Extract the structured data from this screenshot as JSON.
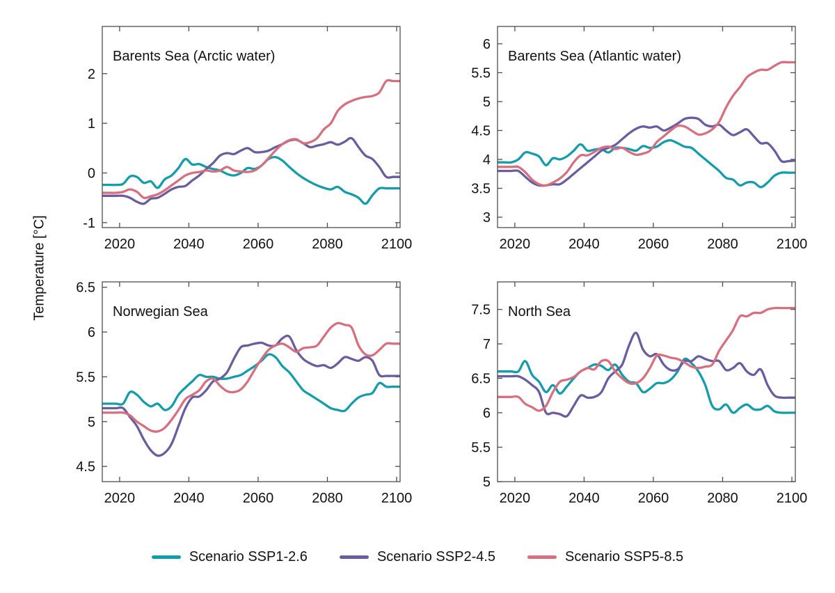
{
  "colors": {
    "ssp126": "#149CAB",
    "ssp245": "#6A5D9E",
    "ssp585": "#D6707F"
  },
  "legend": {
    "items": [
      {
        "label": "Scenario SSP1-2.6",
        "color": "ssp126"
      },
      {
        "label": "Scenario SSP2-4.5",
        "color": "ssp245"
      },
      {
        "label": "Scenario SSP5-8.5",
        "color": "ssp585"
      }
    ]
  },
  "chart_data": {
    "type": "line",
    "y_label": "Temperature [°C]",
    "x_label": "",
    "grid": false,
    "legend_position": "bottom",
    "x_range": [
      2015,
      2101
    ],
    "x_ticks": [
      2020,
      2040,
      2060,
      2080,
      2100
    ],
    "x": [
      2015,
      2017,
      2019,
      2021,
      2023,
      2025,
      2027,
      2029,
      2031,
      2033,
      2035,
      2037,
      2039,
      2041,
      2043,
      2045,
      2047,
      2049,
      2051,
      2053,
      2055,
      2057,
      2059,
      2061,
      2063,
      2065,
      2067,
      2069,
      2071,
      2073,
      2075,
      2077,
      2079,
      2081,
      2083,
      2085,
      2087,
      2089,
      2091,
      2093,
      2095,
      2097,
      2099,
      2101
    ],
    "panels": [
      {
        "title": "Barents Sea (Arctic water)",
        "y_range": [
          -1.1,
          2.95
        ],
        "y_ticks": [
          -1,
          0,
          1,
          2
        ],
        "series": [
          {
            "name": "Scenario SSP1-2.6",
            "scenario": "ssp126",
            "values": [
              -0.24,
              -0.24,
              -0.24,
              -0.22,
              -0.07,
              -0.08,
              -0.2,
              -0.17,
              -0.3,
              -0.13,
              -0.05,
              0.1,
              0.28,
              0.17,
              0.18,
              0.12,
              0.08,
              0.05,
              -0.02,
              -0.05,
              0.0,
              0.1,
              0.08,
              0.15,
              0.28,
              0.32,
              0.25,
              0.12,
              0.0,
              -0.1,
              -0.18,
              -0.25,
              -0.3,
              -0.33,
              -0.28,
              -0.38,
              -0.43,
              -0.5,
              -0.62,
              -0.45,
              -0.31,
              -0.31,
              -0.31,
              -0.31
            ]
          },
          {
            "name": "Scenario SSP2-4.5",
            "scenario": "ssp245",
            "values": [
              -0.46,
              -0.46,
              -0.46,
              -0.46,
              -0.5,
              -0.58,
              -0.62,
              -0.52,
              -0.5,
              -0.42,
              -0.33,
              -0.28,
              -0.26,
              -0.15,
              -0.05,
              0.08,
              0.2,
              0.35,
              0.4,
              0.38,
              0.45,
              0.5,
              0.42,
              0.42,
              0.45,
              0.52,
              0.58,
              0.65,
              0.67,
              0.6,
              0.52,
              0.55,
              0.58,
              0.62,
              0.57,
              0.63,
              0.7,
              0.52,
              0.35,
              0.28,
              0.12,
              -0.08,
              -0.08,
              -0.08
            ]
          },
          {
            "name": "Scenario SSP5-8.5",
            "scenario": "ssp585",
            "values": [
              -0.4,
              -0.4,
              -0.4,
              -0.38,
              -0.33,
              -0.38,
              -0.5,
              -0.47,
              -0.43,
              -0.35,
              -0.25,
              -0.15,
              -0.05,
              0.0,
              0.02,
              0.05,
              0.03,
              0.05,
              0.12,
              0.05,
              0.03,
              0.02,
              0.05,
              0.15,
              0.3,
              0.45,
              0.58,
              0.66,
              0.68,
              0.6,
              0.62,
              0.7,
              0.88,
              1.0,
              1.25,
              1.38,
              1.45,
              1.5,
              1.53,
              1.55,
              1.62,
              1.85,
              1.85,
              1.85
            ]
          }
        ]
      },
      {
        "title": "Barents Sea (Atlantic water)",
        "y_range": [
          2.82,
          6.3
        ],
        "y_ticks": [
          3,
          3.5,
          4,
          4.5,
          5,
          5.5,
          6
        ],
        "series": [
          {
            "name": "Scenario SSP1-2.6",
            "scenario": "ssp126",
            "values": [
              3.95,
              3.95,
              3.95,
              4.0,
              4.12,
              4.1,
              4.05,
              3.9,
              4.02,
              4.0,
              4.05,
              4.15,
              4.26,
              4.15,
              4.17,
              4.18,
              4.12,
              4.2,
              4.2,
              4.18,
              4.15,
              4.23,
              4.2,
              4.22,
              4.3,
              4.33,
              4.28,
              4.22,
              4.2,
              4.1,
              4.0,
              3.9,
              3.8,
              3.68,
              3.65,
              3.55,
              3.6,
              3.6,
              3.52,
              3.6,
              3.72,
              3.77,
              3.77,
              3.77
            ]
          },
          {
            "name": "Scenario SSP2-4.5",
            "scenario": "ssp245",
            "values": [
              3.8,
              3.8,
              3.8,
              3.8,
              3.7,
              3.6,
              3.55,
              3.55,
              3.57,
              3.57,
              3.65,
              3.75,
              3.85,
              3.95,
              4.05,
              4.15,
              4.2,
              4.25,
              4.35,
              4.45,
              4.53,
              4.57,
              4.55,
              4.57,
              4.5,
              4.55,
              4.62,
              4.7,
              4.72,
              4.7,
              4.6,
              4.57,
              4.6,
              4.5,
              4.42,
              4.47,
              4.52,
              4.4,
              4.28,
              4.28,
              4.15,
              3.97,
              3.97,
              3.98
            ]
          },
          {
            "name": "Scenario SSP5-8.5",
            "scenario": "ssp585",
            "values": [
              3.87,
              3.87,
              3.87,
              3.87,
              3.78,
              3.65,
              3.57,
              3.55,
              3.6,
              3.67,
              3.78,
              3.95,
              4.07,
              4.07,
              4.13,
              4.2,
              4.22,
              4.18,
              4.2,
              4.13,
              4.08,
              4.1,
              4.15,
              4.3,
              4.4,
              4.5,
              4.58,
              4.57,
              4.5,
              4.43,
              4.45,
              4.52,
              4.65,
              4.9,
              5.1,
              5.25,
              5.42,
              5.5,
              5.55,
              5.55,
              5.62,
              5.68,
              5.68,
              5.68
            ]
          }
        ]
      },
      {
        "title": "Norwegian Sea",
        "y_range": [
          4.33,
          6.56
        ],
        "y_ticks": [
          4.5,
          5,
          5.5,
          6,
          6.5
        ],
        "series": [
          {
            "name": "Scenario SSP1-2.6",
            "scenario": "ssp126",
            "values": [
              5.2,
              5.2,
              5.2,
              5.2,
              5.33,
              5.3,
              5.22,
              5.17,
              5.2,
              5.13,
              5.17,
              5.3,
              5.38,
              5.45,
              5.52,
              5.5,
              5.5,
              5.48,
              5.48,
              5.5,
              5.52,
              5.57,
              5.62,
              5.68,
              5.75,
              5.72,
              5.62,
              5.55,
              5.45,
              5.35,
              5.3,
              5.25,
              5.2,
              5.15,
              5.13,
              5.12,
              5.2,
              5.27,
              5.3,
              5.32,
              5.43,
              5.39,
              5.39,
              5.39
            ]
          },
          {
            "name": "Scenario SSP2-4.5",
            "scenario": "ssp245",
            "values": [
              5.15,
              5.15,
              5.15,
              5.15,
              5.05,
              4.95,
              4.8,
              4.68,
              4.62,
              4.65,
              4.75,
              4.95,
              5.15,
              5.27,
              5.28,
              5.35,
              5.45,
              5.48,
              5.55,
              5.7,
              5.83,
              5.85,
              5.87,
              5.88,
              5.85,
              5.85,
              5.93,
              5.95,
              5.8,
              5.7,
              5.65,
              5.62,
              5.63,
              5.6,
              5.65,
              5.72,
              5.7,
              5.68,
              5.72,
              5.68,
              5.52,
              5.51,
              5.51,
              5.51
            ]
          },
          {
            "name": "Scenario SSP5-8.5",
            "scenario": "ssp585",
            "values": [
              5.1,
              5.1,
              5.1,
              5.1,
              5.07,
              5.0,
              4.95,
              4.9,
              4.89,
              4.93,
              5.02,
              5.13,
              5.25,
              5.3,
              5.35,
              5.45,
              5.48,
              5.4,
              5.34,
              5.33,
              5.36,
              5.45,
              5.58,
              5.7,
              5.8,
              5.85,
              5.87,
              5.83,
              5.78,
              5.82,
              5.83,
              5.85,
              5.95,
              6.05,
              6.1,
              6.08,
              6.05,
              5.85,
              5.75,
              5.74,
              5.8,
              5.87,
              5.87,
              5.87
            ]
          }
        ]
      },
      {
        "title": "North Sea",
        "y_range": [
          5.0,
          7.9
        ],
        "y_ticks": [
          5,
          5.5,
          6,
          6.5,
          7,
          7.5
        ],
        "series": [
          {
            "name": "Scenario SSP1-2.6",
            "scenario": "ssp126",
            "values": [
              6.6,
              6.6,
              6.6,
              6.6,
              6.75,
              6.55,
              6.45,
              6.3,
              6.4,
              6.28,
              6.38,
              6.5,
              6.6,
              6.65,
              6.7,
              6.68,
              6.62,
              6.7,
              6.55,
              6.45,
              6.43,
              6.3,
              6.35,
              6.43,
              6.43,
              6.48,
              6.6,
              6.78,
              6.72,
              6.6,
              6.4,
              6.1,
              6.05,
              6.12,
              6.0,
              6.07,
              6.12,
              6.05,
              6.05,
              6.1,
              6.02,
              6.0,
              6.0,
              6.0
            ]
          },
          {
            "name": "Scenario SSP2-4.5",
            "scenario": "ssp245",
            "values": [
              6.53,
              6.53,
              6.53,
              6.53,
              6.48,
              6.4,
              6.3,
              6.0,
              6.0,
              5.98,
              5.95,
              6.1,
              6.25,
              6.22,
              6.23,
              6.3,
              6.5,
              6.6,
              6.7,
              6.98,
              7.16,
              6.92,
              6.82,
              6.85,
              6.7,
              6.62,
              6.63,
              6.75,
              6.75,
              6.82,
              6.78,
              6.75,
              6.75,
              6.62,
              6.65,
              6.72,
              6.6,
              6.55,
              6.63,
              6.4,
              6.25,
              6.22,
              6.22,
              6.22
            ]
          },
          {
            "name": "Scenario SSP5-8.5",
            "scenario": "ssp585",
            "values": [
              6.23,
              6.23,
              6.23,
              6.23,
              6.13,
              6.08,
              6.03,
              6.1,
              6.3,
              6.45,
              6.48,
              6.52,
              6.6,
              6.65,
              6.63,
              6.75,
              6.75,
              6.6,
              6.5,
              6.43,
              6.43,
              6.5,
              6.65,
              6.83,
              6.83,
              6.8,
              6.78,
              6.73,
              6.67,
              6.65,
              6.67,
              6.7,
              6.9,
              7.05,
              7.2,
              7.4,
              7.4,
              7.45,
              7.45,
              7.5,
              7.52,
              7.52,
              7.52,
              7.52
            ]
          }
        ]
      }
    ]
  }
}
